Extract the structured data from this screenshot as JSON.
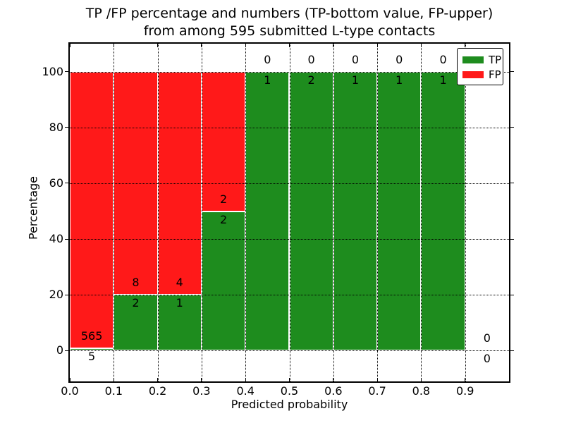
{
  "title": {
    "line1": "TP /FP percentage and numbers (TP-bottom value, FP-upper)",
    "line2": "from among 595 submitted L-type contacts"
  },
  "chart_data": {
    "type": "bar",
    "stacked": true,
    "title": "TP /FP percentage and numbers (TP-bottom value, FP-upper) from among 595 submitted L-type contacts",
    "xlabel": "Predicted probability",
    "ylabel": "Percentage",
    "xlim": [
      0.0,
      1.0
    ],
    "ylim": [
      -11,
      110
    ],
    "x_tick_values": [
      0.0,
      0.1,
      0.2,
      0.3,
      0.4,
      0.5,
      0.6,
      0.7,
      0.8,
      0.9
    ],
    "x_tick_labels": [
      "0.0",
      "0.1",
      "0.2",
      "0.3",
      "0.4",
      "0.5",
      "0.6",
      "0.7",
      "0.8",
      "0.9"
    ],
    "y_tick_values": [
      0,
      20,
      40,
      60,
      80,
      100
    ],
    "y_tick_labels": [
      "0",
      "20",
      "40",
      "60",
      "80",
      "100"
    ],
    "grid": "dotted",
    "total_contacts": 595,
    "colors": {
      "tp": "#1e8c1e",
      "fp": "#ff1919"
    },
    "legend": {
      "position": "top-right",
      "entries": [
        {
          "label": "TP",
          "color": "#1e8c1e"
        },
        {
          "label": "FP",
          "color": "#ff1919"
        }
      ]
    },
    "bins": [
      {
        "x0": 0.0,
        "x1": 0.1,
        "tp": 5,
        "fp": 565,
        "tp_pct": 0.88,
        "total_pct": 100,
        "empty": false
      },
      {
        "x0": 0.1,
        "x1": 0.2,
        "tp": 2,
        "fp": 8,
        "tp_pct": 20,
        "total_pct": 100,
        "empty": false
      },
      {
        "x0": 0.2,
        "x1": 0.3,
        "tp": 1,
        "fp": 4,
        "tp_pct": 20,
        "total_pct": 100,
        "empty": false
      },
      {
        "x0": 0.3,
        "x1": 0.4,
        "tp": 2,
        "fp": 2,
        "tp_pct": 50,
        "total_pct": 100,
        "empty": false
      },
      {
        "x0": 0.4,
        "x1": 0.5,
        "tp": 1,
        "fp": 0,
        "tp_pct": 100,
        "total_pct": 100,
        "empty": false
      },
      {
        "x0": 0.5,
        "x1": 0.6,
        "tp": 2,
        "fp": 0,
        "tp_pct": 100,
        "total_pct": 100,
        "empty": false
      },
      {
        "x0": 0.6,
        "x1": 0.7,
        "tp": 1,
        "fp": 0,
        "tp_pct": 100,
        "total_pct": 100,
        "empty": false
      },
      {
        "x0": 0.7,
        "x1": 0.8,
        "tp": 1,
        "fp": 0,
        "tp_pct": 100,
        "total_pct": 100,
        "empty": false
      },
      {
        "x0": 0.8,
        "x1": 0.9,
        "tp": 1,
        "fp": 0,
        "tp_pct": 100,
        "total_pct": 100,
        "empty": false
      },
      {
        "x0": 0.9,
        "x1": 1.0,
        "tp": 0,
        "fp": 0,
        "tp_pct": 0,
        "total_pct": 0,
        "empty": true
      }
    ]
  }
}
